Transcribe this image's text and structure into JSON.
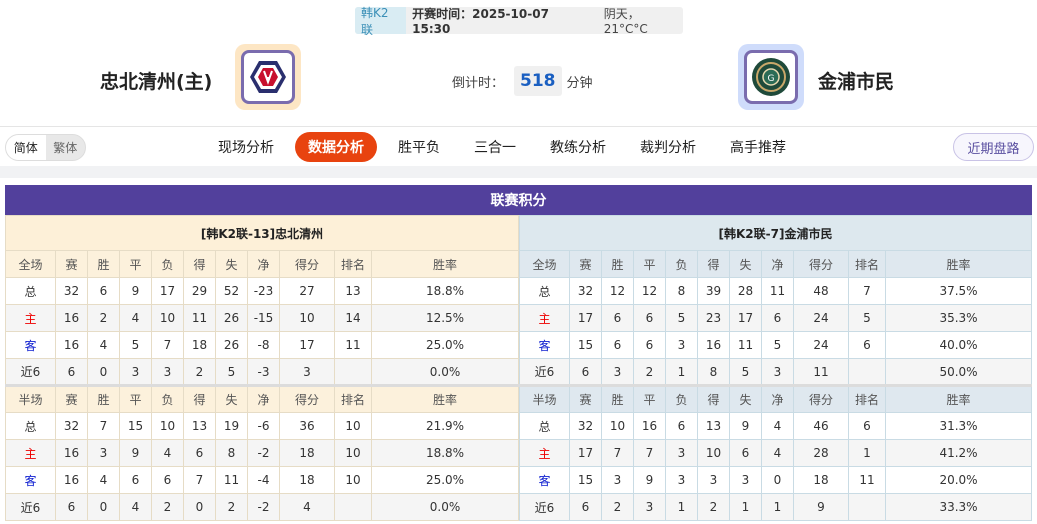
{
  "match": {
    "league": "韩K2联",
    "kickoff": "开赛时间：2025-10-07 15:30",
    "weather": "阴天，21°C°C"
  },
  "home": {
    "name": "忠北清州(主)",
    "logo_bg": "#fde6c4"
  },
  "away": {
    "name": "金浦市民",
    "logo_bg": "#cfdcfb"
  },
  "countdown": {
    "label": "倒计时：",
    "value": "518",
    "unit": "分钟"
  },
  "lang": {
    "simplified": "简体",
    "traditional": "繁体"
  },
  "tabs": [
    {
      "label": "现场分析"
    },
    {
      "label": "数据分析",
      "active": true
    },
    {
      "label": "胜平负"
    },
    {
      "label": "三合一"
    },
    {
      "label": "教练分析"
    },
    {
      "label": "裁判分析"
    },
    {
      "label": "高手推荐"
    }
  ],
  "recent_button": "近期盘路",
  "standings": {
    "title": "联赛积分",
    "colors": {
      "header": "#52409c",
      "active_tab": "#e8430f",
      "home_label": "#e00000",
      "away_label": "#1020d0"
    },
    "columns": [
      "赛",
      "胜",
      "平",
      "负",
      "得",
      "失",
      "净",
      "得分",
      "排名",
      "胜率"
    ],
    "tables": [
      {
        "team": "[韩K2联-13]忠北清州",
        "sections": [
          {
            "label": "全场",
            "rows": [
              [
                "总",
                "32",
                "6",
                "9",
                "17",
                "29",
                "52",
                "-23",
                "27",
                "13",
                "18.8%"
              ],
              [
                "主",
                "16",
                "2",
                "4",
                "10",
                "11",
                "26",
                "-15",
                "10",
                "14",
                "12.5%"
              ],
              [
                "客",
                "16",
                "4",
                "5",
                "7",
                "18",
                "26",
                "-8",
                "17",
                "11",
                "25.0%"
              ],
              [
                "近6",
                "6",
                "0",
                "3",
                "3",
                "2",
                "5",
                "-3",
                "3",
                "",
                "0.0%"
              ]
            ]
          },
          {
            "label": "半场",
            "rows": [
              [
                "总",
                "32",
                "7",
                "15",
                "10",
                "13",
                "19",
                "-6",
                "36",
                "10",
                "21.9%"
              ],
              [
                "主",
                "16",
                "3",
                "9",
                "4",
                "6",
                "8",
                "-2",
                "18",
                "10",
                "18.8%"
              ],
              [
                "客",
                "16",
                "4",
                "6",
                "6",
                "7",
                "11",
                "-4",
                "18",
                "10",
                "25.0%"
              ],
              [
                "近6",
                "6",
                "0",
                "4",
                "2",
                "0",
                "2",
                "-2",
                "4",
                "",
                "0.0%"
              ]
            ]
          }
        ]
      },
      {
        "team": "[韩K2联-7]金浦市民",
        "sections": [
          {
            "label": "全场",
            "rows": [
              [
                "总",
                "32",
                "12",
                "12",
                "8",
                "39",
                "28",
                "11",
                "48",
                "7",
                "37.5%"
              ],
              [
                "主",
                "17",
                "6",
                "6",
                "5",
                "23",
                "17",
                "6",
                "24",
                "5",
                "35.3%"
              ],
              [
                "客",
                "15",
                "6",
                "6",
                "3",
                "16",
                "11",
                "5",
                "24",
                "6",
                "40.0%"
              ],
              [
                "近6",
                "6",
                "3",
                "2",
                "1",
                "8",
                "5",
                "3",
                "11",
                "",
                "50.0%"
              ]
            ]
          },
          {
            "label": "半场",
            "rows": [
              [
                "总",
                "32",
                "10",
                "16",
                "6",
                "13",
                "9",
                "4",
                "46",
                "6",
                "31.3%"
              ],
              [
                "主",
                "17",
                "7",
                "7",
                "3",
                "10",
                "6",
                "4",
                "28",
                "1",
                "41.2%"
              ],
              [
                "客",
                "15",
                "3",
                "9",
                "3",
                "3",
                "3",
                "0",
                "18",
                "11",
                "20.0%"
              ],
              [
                "近6",
                "6",
                "2",
                "3",
                "1",
                "2",
                "1",
                "1",
                "9",
                "",
                "33.3%"
              ]
            ]
          }
        ]
      }
    ]
  }
}
